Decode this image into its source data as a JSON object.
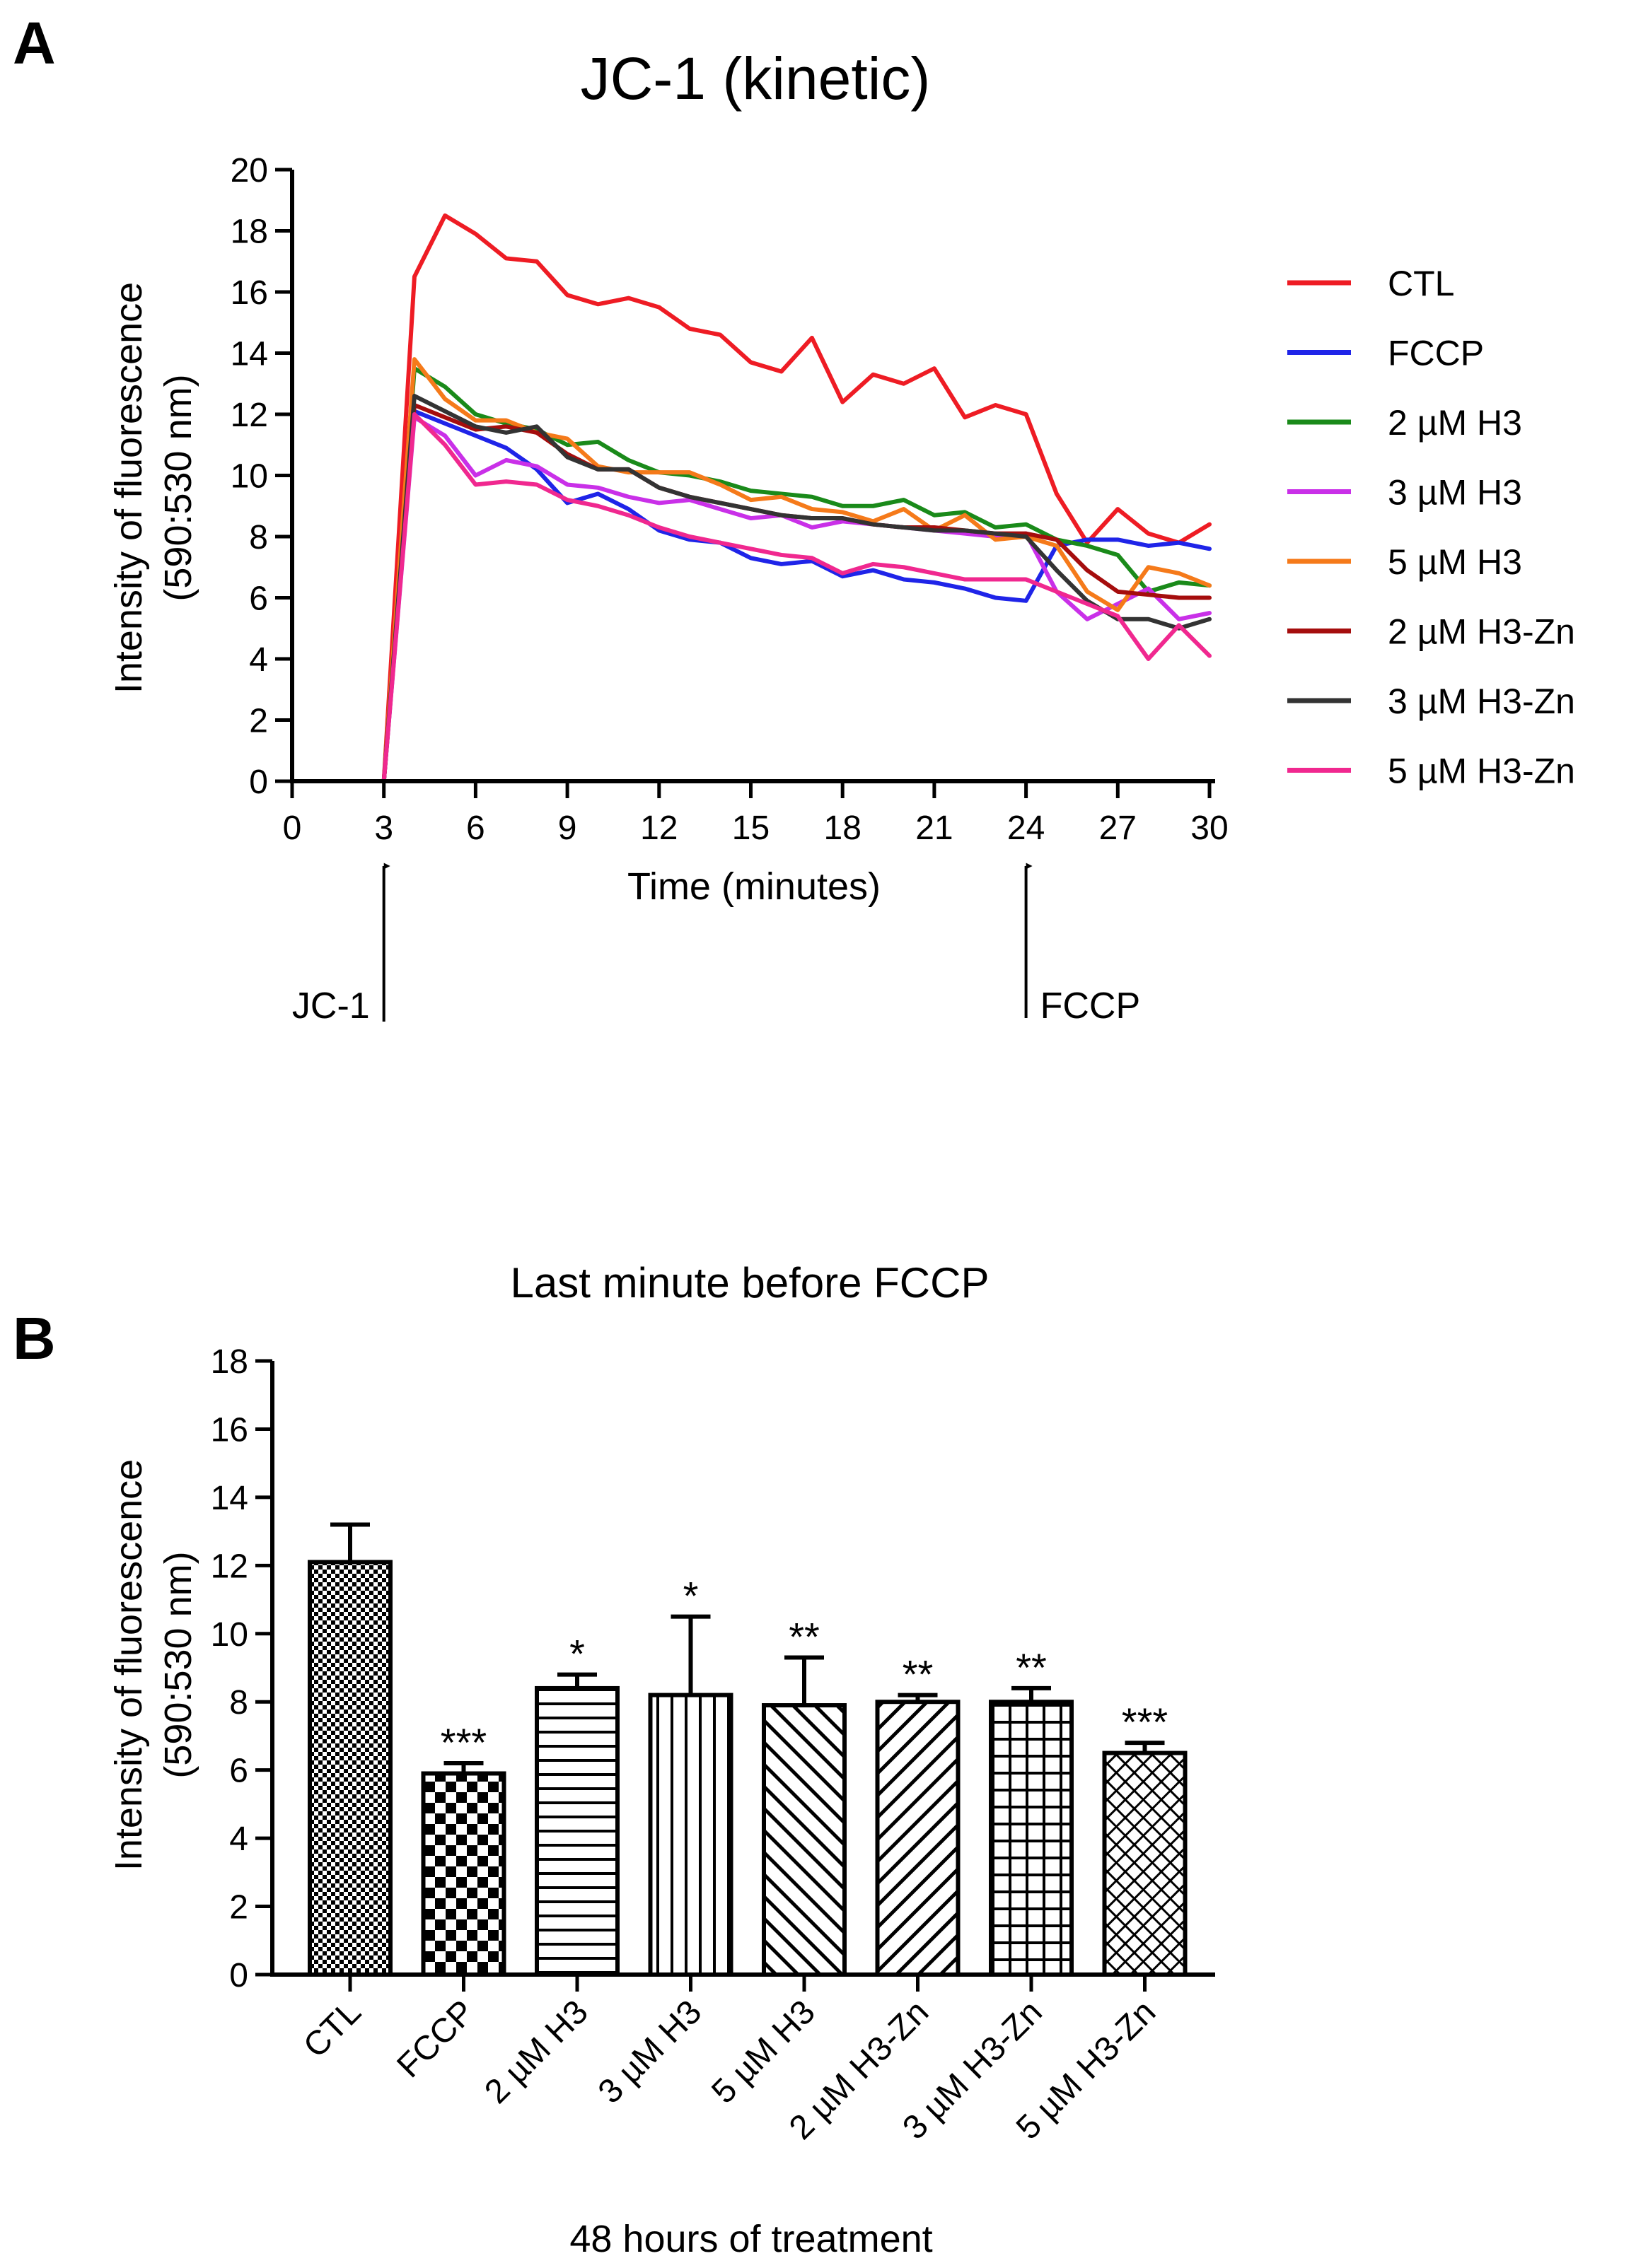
{
  "panels": {
    "a": {
      "label": "A"
    },
    "b": {
      "label": "B"
    }
  },
  "chart_data": [
    {
      "type": "line",
      "title": "JC-1 (kinetic)",
      "xlabel": "Time (minutes)",
      "ylabel_line1": "Intensity of fluorescence",
      "ylabel_line2": "(590:530 nm)",
      "xlim": [
        0,
        30
      ],
      "ylim": [
        0,
        20
      ],
      "xticks": [
        0,
        3,
        6,
        9,
        12,
        15,
        18,
        21,
        24,
        27,
        30
      ],
      "yticks": [
        0,
        2,
        4,
        6,
        8,
        10,
        12,
        14,
        16,
        18,
        20
      ],
      "x": [
        0,
        1,
        2,
        3,
        4,
        5,
        6,
        7,
        8,
        9,
        10,
        11,
        12,
        13,
        14,
        15,
        16,
        17,
        18,
        19,
        20,
        21,
        22,
        23,
        24,
        25,
        26,
        27,
        28,
        29,
        30
      ],
      "legend_position": "right",
      "annotations": [
        {
          "text": "JC-1",
          "x": 3
        },
        {
          "text": "FCCP",
          "x": 24
        }
      ],
      "series": [
        {
          "name": "CTL",
          "color": "#ee1c24",
          "values": [
            0,
            0,
            0,
            0,
            16.5,
            18.5,
            17.9,
            17.1,
            17.0,
            15.9,
            15.6,
            15.8,
            15.5,
            14.8,
            14.6,
            13.7,
            13.4,
            14.5,
            12.4,
            13.3,
            13.0,
            13.5,
            11.9,
            12.3,
            12.0,
            9.4,
            7.8,
            8.9,
            8.1,
            7.8,
            8.4
          ]
        },
        {
          "name": "FCCP",
          "color": "#1f24e8",
          "values": [
            0,
            0,
            0,
            0,
            12.1,
            11.7,
            11.3,
            10.9,
            10.2,
            9.1,
            9.4,
            8.9,
            8.2,
            7.9,
            7.8,
            7.3,
            7.1,
            7.2,
            6.7,
            6.9,
            6.6,
            6.5,
            6.3,
            6.0,
            5.9,
            7.7,
            7.9,
            7.9,
            7.7,
            7.8,
            7.6
          ]
        },
        {
          "name": "2 µM H3",
          "color": "#1a8a1a",
          "values": [
            0,
            0,
            0,
            0,
            13.5,
            12.9,
            12.0,
            11.7,
            11.5,
            11.0,
            11.1,
            10.5,
            10.1,
            10.0,
            9.8,
            9.5,
            9.4,
            9.3,
            9.0,
            9.0,
            9.2,
            8.7,
            8.8,
            8.3,
            8.4,
            7.9,
            7.7,
            7.4,
            6.2,
            6.5,
            6.4
          ]
        },
        {
          "name": "3 µM H3",
          "color": "#c930e8",
          "values": [
            0,
            0,
            0,
            0,
            11.9,
            11.3,
            10.0,
            10.5,
            10.3,
            9.7,
            9.6,
            9.3,
            9.1,
            9.2,
            8.9,
            8.6,
            8.7,
            8.3,
            8.5,
            8.4,
            8.3,
            8.2,
            8.1,
            8.0,
            8.1,
            6.2,
            5.3,
            5.8,
            6.3,
            5.3,
            5.5
          ]
        },
        {
          "name": "5 µM H3",
          "color": "#f57a1a",
          "values": [
            0,
            0,
            0,
            0,
            13.8,
            12.5,
            11.8,
            11.8,
            11.4,
            11.2,
            10.3,
            10.1,
            10.1,
            10.1,
            9.7,
            9.2,
            9.3,
            8.9,
            8.8,
            8.5,
            8.9,
            8.2,
            8.7,
            7.9,
            8.0,
            7.7,
            6.2,
            5.6,
            7.0,
            6.8,
            6.4
          ]
        },
        {
          "name": "2 µM H3-Zn",
          "color": "#a50d0d",
          "values": [
            0,
            0,
            0,
            0,
            12.3,
            11.9,
            11.5,
            11.6,
            11.4,
            10.7,
            10.2,
            10.2,
            9.6,
            9.3,
            9.1,
            8.9,
            8.7,
            8.6,
            8.6,
            8.4,
            8.3,
            8.3,
            8.2,
            8.1,
            8.1,
            7.9,
            6.9,
            6.2,
            6.1,
            6.0,
            6.0
          ]
        },
        {
          "name": "3 µM H3-Zn",
          "color": "#333333",
          "values": [
            0,
            0,
            0,
            0,
            12.6,
            12.1,
            11.6,
            11.4,
            11.6,
            10.6,
            10.2,
            10.2,
            9.6,
            9.3,
            9.1,
            8.9,
            8.7,
            8.6,
            8.6,
            8.4,
            8.3,
            8.2,
            8.2,
            8.1,
            8.0,
            6.9,
            5.9,
            5.3,
            5.3,
            5.0,
            5.3
          ]
        },
        {
          "name": "5 µM H3-Zn",
          "color": "#f0288f",
          "values": [
            0,
            0,
            0,
            0,
            12.0,
            11.0,
            9.7,
            9.8,
            9.7,
            9.2,
            9.0,
            8.7,
            8.3,
            8.0,
            7.8,
            7.6,
            7.4,
            7.3,
            6.8,
            7.1,
            7.0,
            6.8,
            6.6,
            6.6,
            6.6,
            6.2,
            5.8,
            5.4,
            4.0,
            5.1,
            4.1
          ]
        }
      ]
    },
    {
      "type": "bar",
      "title": "Last minute before FCCP",
      "xlabel": "48 hours of treatment",
      "ylabel_line1": "Intensity of fluorescence",
      "ylabel_line2": "(590:530 nm)",
      "ylim": [
        0,
        18
      ],
      "yticks": [
        0,
        2,
        4,
        6,
        8,
        10,
        12,
        14,
        16,
        18
      ],
      "categories": [
        "CTL",
        "FCCP",
        "2 µM H3",
        "3 µM H3",
        "5 µM H3",
        "2 µM H3-Zn",
        "3 µM H3-Zn",
        "5 µM H3-Zn"
      ],
      "values": [
        12.1,
        5.9,
        8.4,
        8.2,
        7.9,
        8.0,
        8.0,
        6.5
      ],
      "errors": [
        1.1,
        0.3,
        0.4,
        2.3,
        1.4,
        0.2,
        0.4,
        0.3
      ],
      "significance": [
        "",
        "***",
        "*",
        "*",
        "**",
        "**",
        "**",
        "***"
      ],
      "patterns": [
        "fine-check",
        "checker",
        "horizontal",
        "vertical",
        "diagonal-up",
        "diagonal-down",
        "grid",
        "crosshatch"
      ]
    }
  ]
}
